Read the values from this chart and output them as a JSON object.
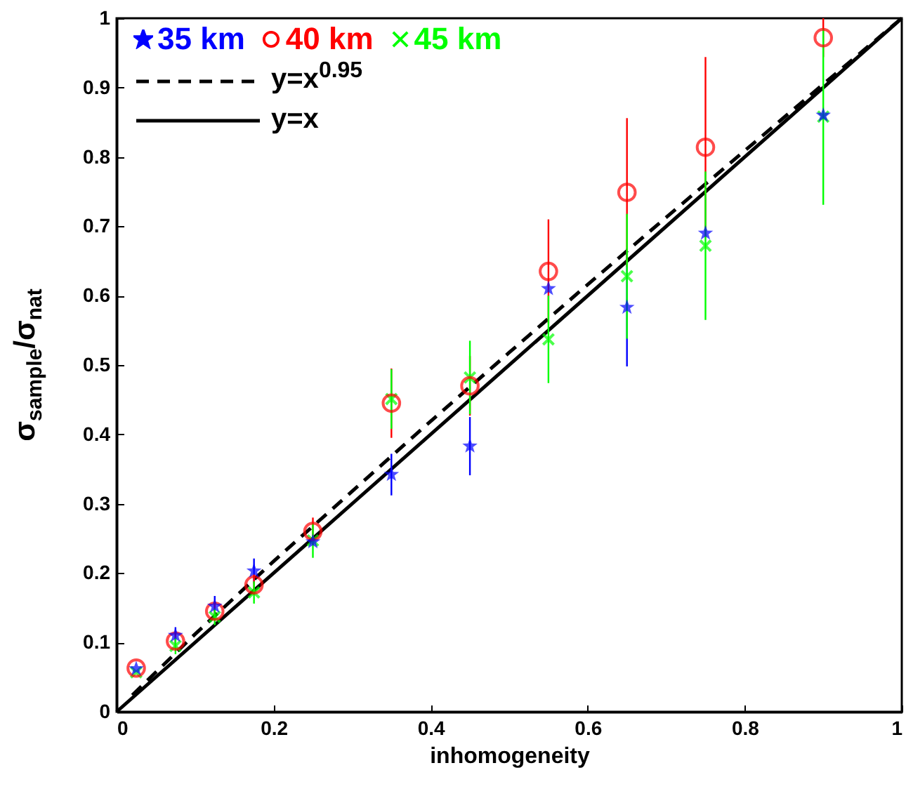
{
  "chart_data": {
    "type": "scatter",
    "xlabel": "inhomogeneity",
    "ylabel": "σ$_{sample}$/σ$_{nat}$",
    "xlim": [
      0,
      1
    ],
    "ylim": [
      0,
      1
    ],
    "xticks": [
      0,
      0.2,
      0.4,
      0.6,
      0.8,
      1
    ],
    "yticks": [
      0,
      0.1,
      0.2,
      0.3,
      0.4,
      0.5,
      0.6,
      0.7,
      0.8,
      0.9,
      1
    ],
    "grid": false,
    "legend": "top left",
    "series": [
      {
        "name": "35 km",
        "color": "#0000ff",
        "marker": "star",
        "x": [
          0.025,
          0.075,
          0.125,
          0.175,
          0.25,
          0.35,
          0.45,
          0.55,
          0.65,
          0.75,
          0.9
        ],
        "values": [
          0.062,
          0.11,
          0.152,
          0.203,
          0.245,
          0.342,
          0.383,
          0.61,
          0.583,
          0.69,
          0.86
        ],
        "errors": [
          null,
          0.012,
          0.015,
          0.018,
          null,
          0.03,
          0.042,
          null,
          0.085,
          null,
          null
        ]
      },
      {
        "name": "40 km",
        "color": "#ff0000",
        "marker": "circle",
        "x": [
          0.025,
          0.075,
          0.125,
          0.175,
          0.25,
          0.35,
          0.45,
          0.55,
          0.65,
          0.75,
          0.9
        ],
        "values": [
          0.063,
          0.102,
          0.145,
          0.183,
          0.26,
          0.445,
          0.47,
          0.635,
          0.749,
          0.814,
          0.972
        ],
        "errors": [
          null,
          0.01,
          0.012,
          0.015,
          0.02,
          0.05,
          0.043,
          0.075,
          0.107,
          0.13,
          0.028
        ]
      },
      {
        "name": "45 km",
        "color": "#00ff00",
        "marker": "cross",
        "x": [
          0.025,
          0.075,
          0.125,
          0.175,
          0.25,
          0.35,
          0.45,
          0.55,
          0.65,
          0.75,
          0.9
        ],
        "values": [
          0.057,
          0.095,
          0.137,
          0.172,
          0.247,
          0.451,
          0.482,
          0.537,
          0.628,
          0.672,
          0.858
        ],
        "errors": [
          null,
          0.012,
          0.012,
          0.016,
          0.025,
          0.043,
          0.053,
          0.063,
          0.09,
          0.107,
          0.127
        ]
      },
      {
        "name": "y=x$^{0.95}$",
        "type": "line",
        "color": "#000000",
        "line_style": "dashed",
        "marker": "none",
        "x": [
          0.02,
          0.1,
          0.2,
          0.3,
          0.4,
          0.5,
          0.6,
          0.7,
          0.8,
          0.9,
          1
        ],
        "values": [
          0.024,
          0.112,
          0.217,
          0.318,
          0.419,
          0.518,
          0.616,
          0.713,
          0.809,
          0.905,
          1
        ]
      },
      {
        "name": "y=x",
        "type": "line",
        "color": "#000000",
        "line_style": "solid",
        "marker": "none",
        "x": [
          0,
          1
        ],
        "values": [
          0,
          1
        ]
      }
    ]
  }
}
